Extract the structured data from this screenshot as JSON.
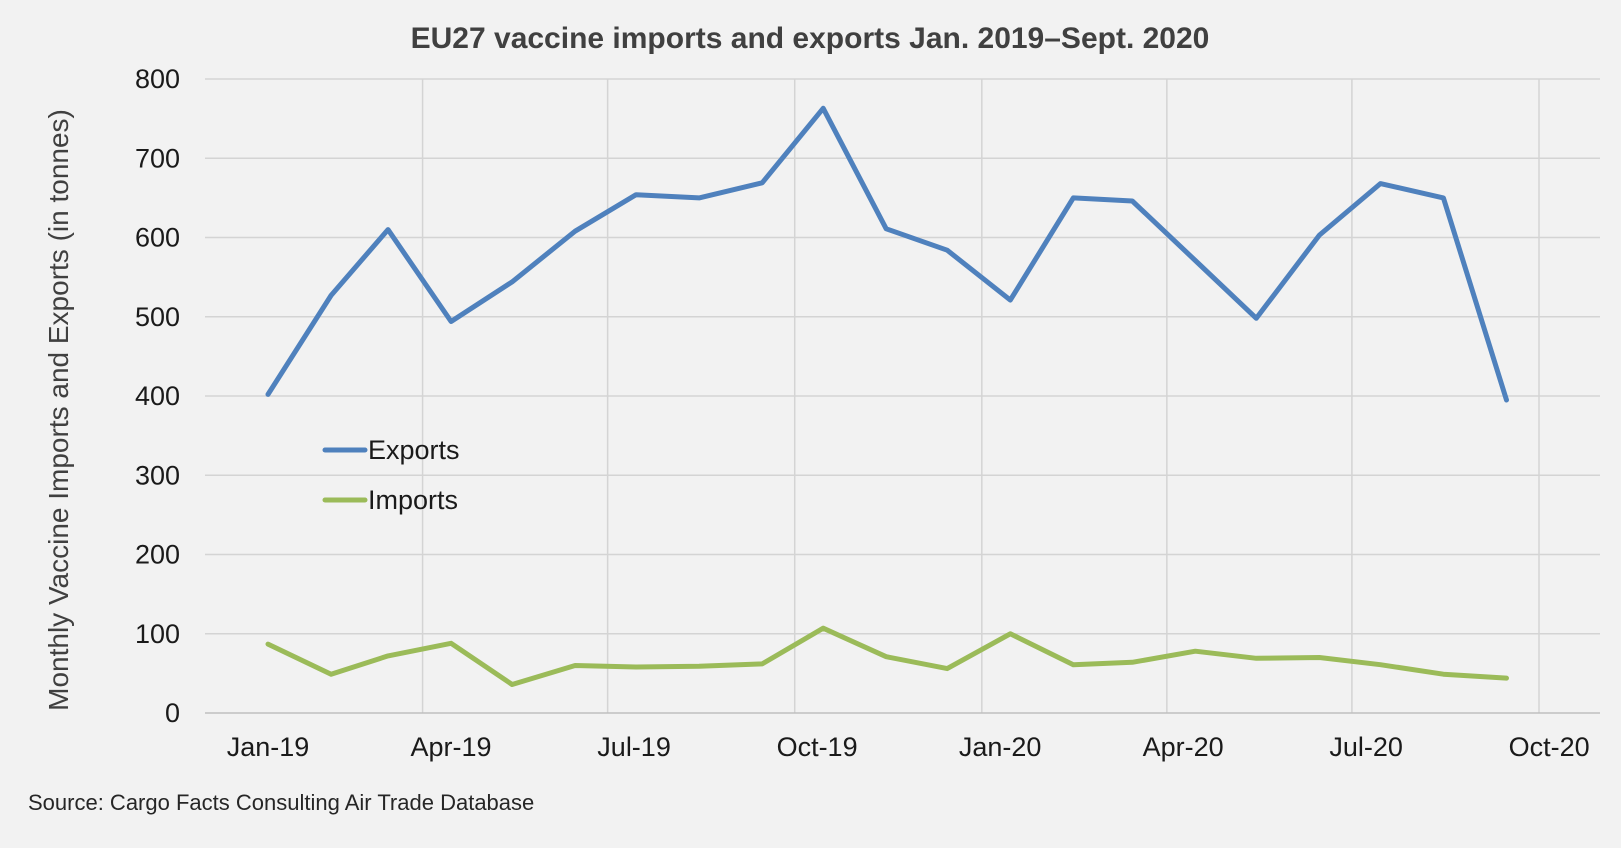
{
  "chart_data": {
    "type": "line",
    "title": "EU27 vaccine imports and exports Jan. 2019–Sept. 2020",
    "ylabel": "Monthly Vaccine Imports and Exports (in tonnes)",
    "xlabel": "",
    "ylim": [
      0,
      800
    ],
    "yticks": [
      "0",
      "100",
      "200",
      "300",
      "400",
      "500",
      "600",
      "700",
      "800"
    ],
    "x_tick_labels": [
      "Jan-19",
      "Apr-19",
      "Jul-19",
      "Oct-19",
      "Jan-20",
      "Apr-20",
      "Jul-20",
      "Oct-20"
    ],
    "x_range": [
      "2018-12-15",
      "2020-10-31"
    ],
    "x": [
      "2019-01-15",
      "2019-02-15",
      "2019-03-15",
      "2019-04-15",
      "2019-05-15",
      "2019-06-15",
      "2019-07-15",
      "2019-08-15",
      "2019-09-15",
      "2019-10-15",
      "2019-11-15",
      "2019-12-15",
      "2020-01-15",
      "2020-02-15",
      "2020-03-15",
      "2020-04-15",
      "2020-05-15",
      "2020-06-15",
      "2020-07-15",
      "2020-08-15",
      "2020-09-15"
    ],
    "series": [
      {
        "name": "Exports",
        "color": "#4f81bd",
        "values": [
          402,
          527,
          610,
          494,
          544,
          608,
          654,
          650,
          669,
          763,
          611,
          584,
          521,
          650,
          646,
          571,
          498,
          603,
          668,
          650,
          395
        ]
      },
      {
        "name": "Imports",
        "color": "#9bbb59",
        "values": [
          87,
          49,
          72,
          88,
          36,
          60,
          58,
          59,
          62,
          107,
          71,
          56,
          100,
          61,
          64,
          78,
          69,
          70,
          61,
          49,
          44
        ]
      }
    ],
    "grid": true,
    "legend_position": "center-left"
  },
  "source": "Source:  Cargo Facts Consulting Air Trade Database"
}
